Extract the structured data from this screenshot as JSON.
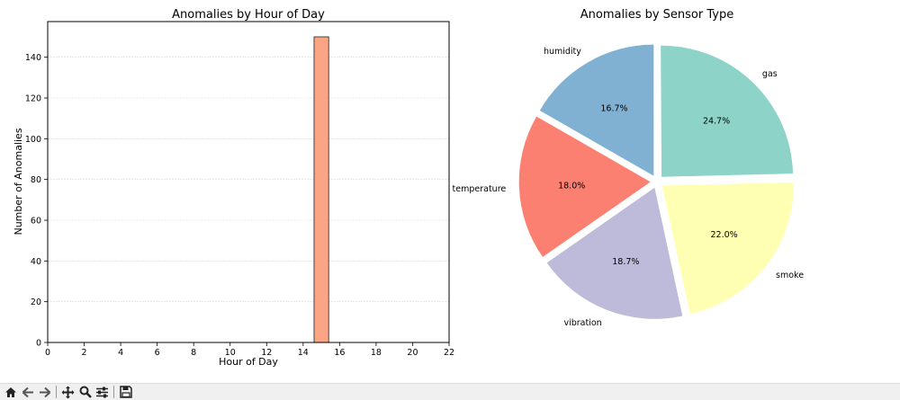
{
  "figure": {
    "bar_chart": {
      "type": "bar",
      "title": "Anomalies by Hour of Day",
      "xlabel": "Hour of Day",
      "ylabel": "Number of Anomalies",
      "xlim": [
        0,
        22
      ],
      "ylim": [
        0,
        157.5
      ],
      "xticks": [
        "0",
        "2",
        "4",
        "6",
        "8",
        "10",
        "12",
        "14",
        "16",
        "18",
        "20",
        "22"
      ],
      "yticks": [
        "0",
        "20",
        "40",
        "60",
        "80",
        "100",
        "120",
        "140"
      ],
      "grid": "horizontal",
      "bars": [
        {
          "x": 15,
          "width": 0.8,
          "value": 150
        }
      ],
      "bar_color": "#fca585",
      "edge_color": "#333333"
    },
    "pie_chart": {
      "type": "pie",
      "title": "Anomalies by Sensor Type",
      "slices": [
        {
          "label": "humidity",
          "percent": 16.7,
          "percent_label": "16.7%",
          "color": "#80b1d3"
        },
        {
          "label": "temperature",
          "percent": 18.0,
          "percent_label": "18.0%",
          "color": "#fb8072"
        },
        {
          "label": "vibration",
          "percent": 18.7,
          "percent_label": "18.7%",
          "color": "#bebada"
        },
        {
          "label": "smoke",
          "percent": 22.0,
          "percent_label": "22.0%",
          "color": "#ffffb3"
        },
        {
          "label": "gas",
          "percent": 24.7,
          "percent_label": "24.7%",
          "color": "#8dd3c7"
        }
      ]
    }
  },
  "toolbar": {
    "buttons": [
      {
        "name": "home-icon"
      },
      {
        "name": "back-icon"
      },
      {
        "name": "forward-icon"
      },
      {
        "name": "pan-icon"
      },
      {
        "name": "zoom-icon"
      },
      {
        "name": "configure-subplots-icon"
      },
      {
        "name": "save-icon"
      }
    ]
  }
}
